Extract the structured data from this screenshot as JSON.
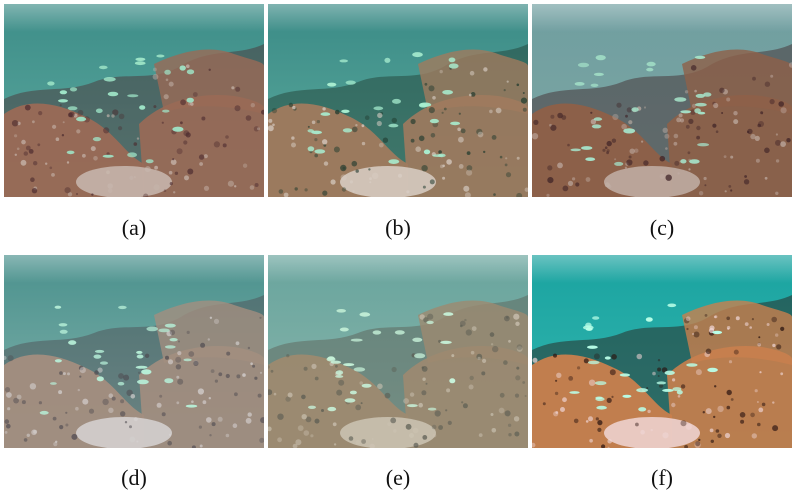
{
  "panels": [
    {
      "caption": "(a)",
      "variant": "original-underwater-photo",
      "water_top": "#3d8d88",
      "water_bottom": "#5faba0",
      "coral": "#9a6a56",
      "coral_dark": "#4b2a2e",
      "sand": "#c9b9b0",
      "fish": "#9fe6c8"
    },
    {
      "caption": "(b)",
      "variant": "enhanced-result",
      "water_top": "#3a8a86",
      "water_bottom": "#5fae9f",
      "coral": "#a07a5e",
      "coral_dark": "#203a2e",
      "sand": "#d9cfc6",
      "fish": "#a8eed0"
    },
    {
      "caption": "(c)",
      "variant": "enhanced-result",
      "water_top": "#6f9ea0",
      "water_bottom": "#7fa7a3",
      "coral": "#8e6048",
      "coral_dark": "#3e2226",
      "sand": "#c2b0a7",
      "fish": "#a5e3c9"
    },
    {
      "caption": "(d)",
      "variant": "enhanced-result",
      "water_top": "#4a918d",
      "water_bottom": "#86b4ad",
      "coral": "#a38e80",
      "coral_dark": "#4e4a50",
      "sand": "#d7d3d3",
      "fish": "#b7f0d8"
    },
    {
      "caption": "(e)",
      "variant": "enhanced-result",
      "water_top": "#68a49d",
      "water_bottom": "#8cb7ac",
      "coral": "#9d8a70",
      "coral_dark": "#5a5c52",
      "sand": "#cdc4b4",
      "fish": "#c7f2d9"
    },
    {
      "caption": "(f)",
      "variant": "enhanced-result",
      "water_top": "#1aa3a0",
      "water_bottom": "#35b7b0",
      "coral": "#c97f4d",
      "coral_dark": "#2a1410",
      "sand": "#f0d6d6",
      "fish": "#b9ffe8"
    }
  ]
}
